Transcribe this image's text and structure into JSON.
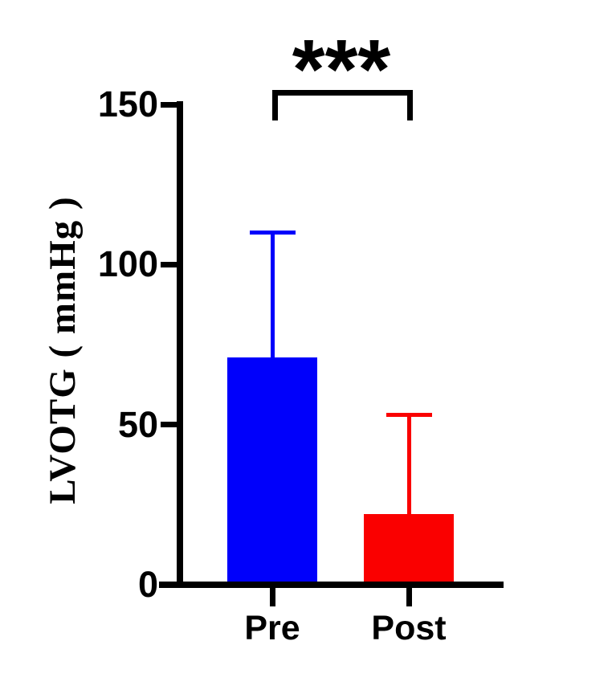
{
  "chart_data": {
    "type": "bar",
    "title": "",
    "ylabel": "LVOTG ( mmHg )",
    "xlabel": "",
    "ylim": [
      0,
      150
    ],
    "yticks": [
      0,
      50,
      100,
      150
    ],
    "grid": false,
    "legend": "none",
    "categories": [
      "Pre",
      "Post"
    ],
    "bars": [
      {
        "category": "Pre",
        "value": 71,
        "error_upper": 39,
        "color": "#0000fb"
      },
      {
        "category": "Post",
        "value": 22,
        "error_upper": 31,
        "color": "#fa0000"
      }
    ],
    "significance": {
      "label": "***",
      "between": [
        "Pre",
        "Post"
      ]
    },
    "colors": {
      "axis": "#000000",
      "pre_bar": "#0000fb",
      "post_bar": "#fa0000",
      "background": "#ffffff"
    }
  }
}
